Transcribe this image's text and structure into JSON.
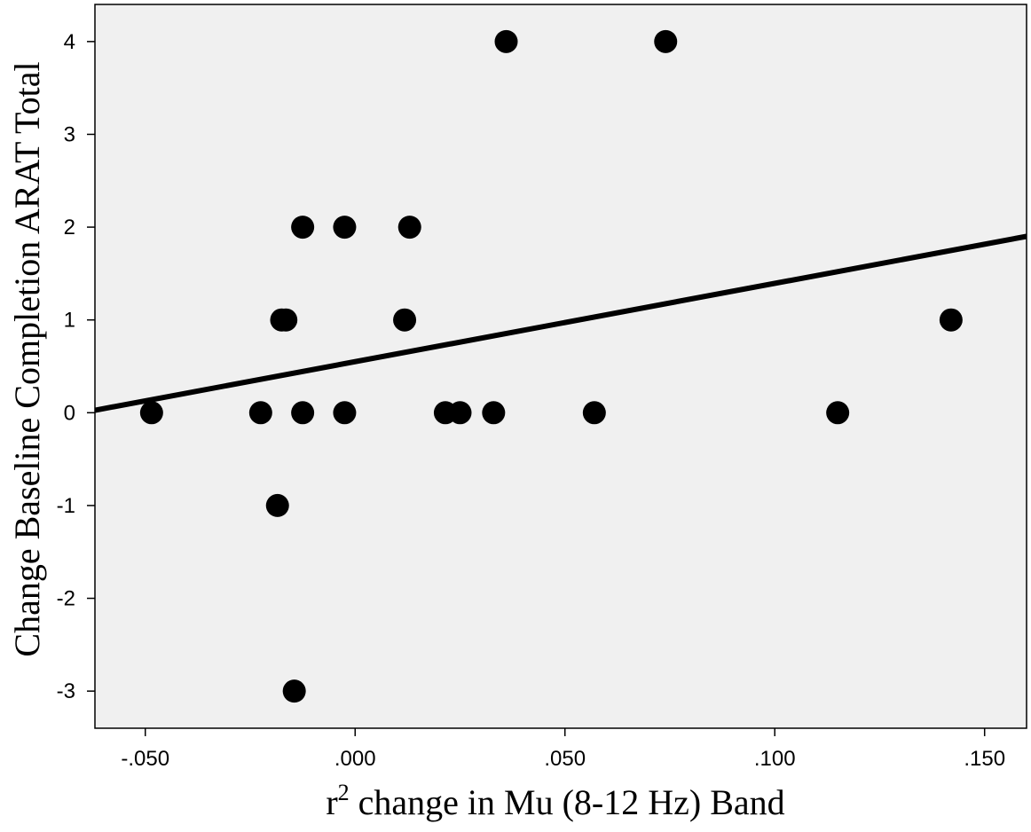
{
  "chart_data": {
    "type": "scatter",
    "title": "",
    "xlabel": "change in Mu (8-12 Hz) Band",
    "xlabel_prefix": "r",
    "xlabel_superscript": "2",
    "ylabel": "Change Baseline Completion ARAT Total",
    "xlim": [
      -0.062,
      0.16
    ],
    "ylim": [
      -3.4,
      4.4
    ],
    "x_ticks": [
      -0.05,
      0.0,
      0.05,
      0.1,
      0.15
    ],
    "x_tick_labels": [
      "-.050",
      ".000",
      ".050",
      ".100",
      ".150"
    ],
    "y_ticks": [
      -3,
      -2,
      -1,
      0,
      1,
      2,
      3,
      4
    ],
    "y_tick_labels": [
      "-3",
      "-2",
      "-1",
      "0",
      "1",
      "2",
      "3",
      "4"
    ],
    "points": [
      {
        "x": -0.0485,
        "y": 0
      },
      {
        "x": -0.0225,
        "y": 0
      },
      {
        "x": -0.0185,
        "y": -1
      },
      {
        "x": -0.0175,
        "y": 1
      },
      {
        "x": -0.0165,
        "y": 1
      },
      {
        "x": -0.0145,
        "y": -3
      },
      {
        "x": -0.0125,
        "y": 2
      },
      {
        "x": -0.0125,
        "y": 0
      },
      {
        "x": -0.0025,
        "y": 2
      },
      {
        "x": -0.0025,
        "y": 0
      },
      {
        "x": 0.0118,
        "y": 1
      },
      {
        "x": 0.013,
        "y": 2
      },
      {
        "x": 0.0215,
        "y": 0
      },
      {
        "x": 0.025,
        "y": 0
      },
      {
        "x": 0.033,
        "y": 0
      },
      {
        "x": 0.036,
        "y": 4
      },
      {
        "x": 0.057,
        "y": 0
      },
      {
        "x": 0.074,
        "y": 4
      },
      {
        "x": 0.115,
        "y": 0
      },
      {
        "x": 0.142,
        "y": 1
      }
    ],
    "fit_line": {
      "intercept": 0.55,
      "slope": 8.44
    },
    "background_color": "#f0f0f0",
    "point_color": "#000000",
    "line_color": "#000000",
    "grid": false,
    "legend": "none"
  }
}
